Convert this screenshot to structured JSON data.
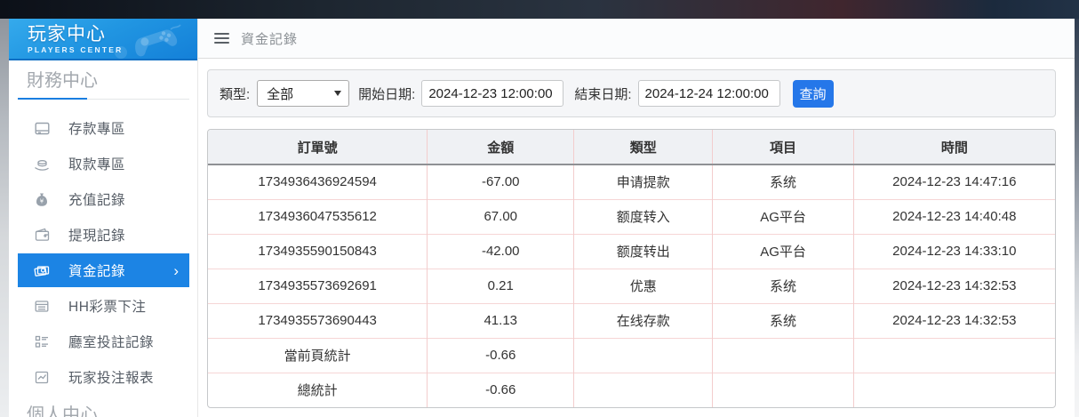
{
  "sidebar": {
    "title": "玩家中心",
    "subtitle": "PLAYERS CENTER",
    "section_finance": "財務中心",
    "section_personal": "個人中心",
    "items": [
      {
        "label": "存款專區",
        "icon": "deposit-window-icon",
        "active": false
      },
      {
        "label": "取款專區",
        "icon": "withdraw-hand-icon",
        "active": false
      },
      {
        "label": "充值記錄",
        "icon": "moneybag-icon",
        "active": false
      },
      {
        "label": "提現記錄",
        "icon": "wallet-icon",
        "active": false
      },
      {
        "label": "資金記錄",
        "icon": "banknotes-icon",
        "active": true,
        "chevron": "›"
      },
      {
        "label": "HH彩票下注",
        "icon": "lottery-ticket-icon",
        "active": false
      },
      {
        "label": "廳室投註記錄",
        "icon": "bet-list-icon",
        "active": false
      },
      {
        "label": "玩家投注報表",
        "icon": "report-chart-icon",
        "active": false
      }
    ]
  },
  "topbar": {
    "title": "資金記錄"
  },
  "filters": {
    "type_label": "類型:",
    "type_value": "全部",
    "start_label": "開始日期:",
    "start_value": "2024-12-23 12:00:00",
    "end_label": "結束日期:",
    "end_value": "2024-12-24 12:00:00",
    "search_label": "查詢"
  },
  "table": {
    "headers": [
      "訂單號",
      "金額",
      "類型",
      "項目",
      "時間"
    ],
    "col_widths": [
      "25.9%",
      "17.3%",
      "16.4%",
      "16.6%",
      "23.8%"
    ],
    "rows": [
      [
        "1734936436924594",
        "-67.00",
        "申请提款",
        "系统",
        "2024-12-23 14:47:16"
      ],
      [
        "1734936047535612",
        "67.00",
        "额度转入",
        "AG平台",
        "2024-12-23 14:40:48"
      ],
      [
        "1734935590150843",
        "-42.00",
        "额度转出",
        "AG平台",
        "2024-12-23 14:33:10"
      ],
      [
        "1734935573692691",
        "0.21",
        "优惠",
        "系统",
        "2024-12-23 14:32:53"
      ],
      [
        "1734935573690443",
        "41.13",
        "在线存款",
        "系统",
        "2024-12-23 14:32:53"
      ],
      [
        "當前頁統計",
        "-0.66",
        "",
        "",
        ""
      ],
      [
        "總統計",
        "-0.66",
        "",
        "",
        ""
      ]
    ]
  },
  "colors": {
    "accent_blue": "#1c84e4",
    "header_gradient_top": "#35aaec",
    "header_gradient_bottom": "#1480d8",
    "button_blue": "#2577e9",
    "table_cell_border": "#f3cdcd",
    "header_row_bg": "#eff1f4"
  }
}
